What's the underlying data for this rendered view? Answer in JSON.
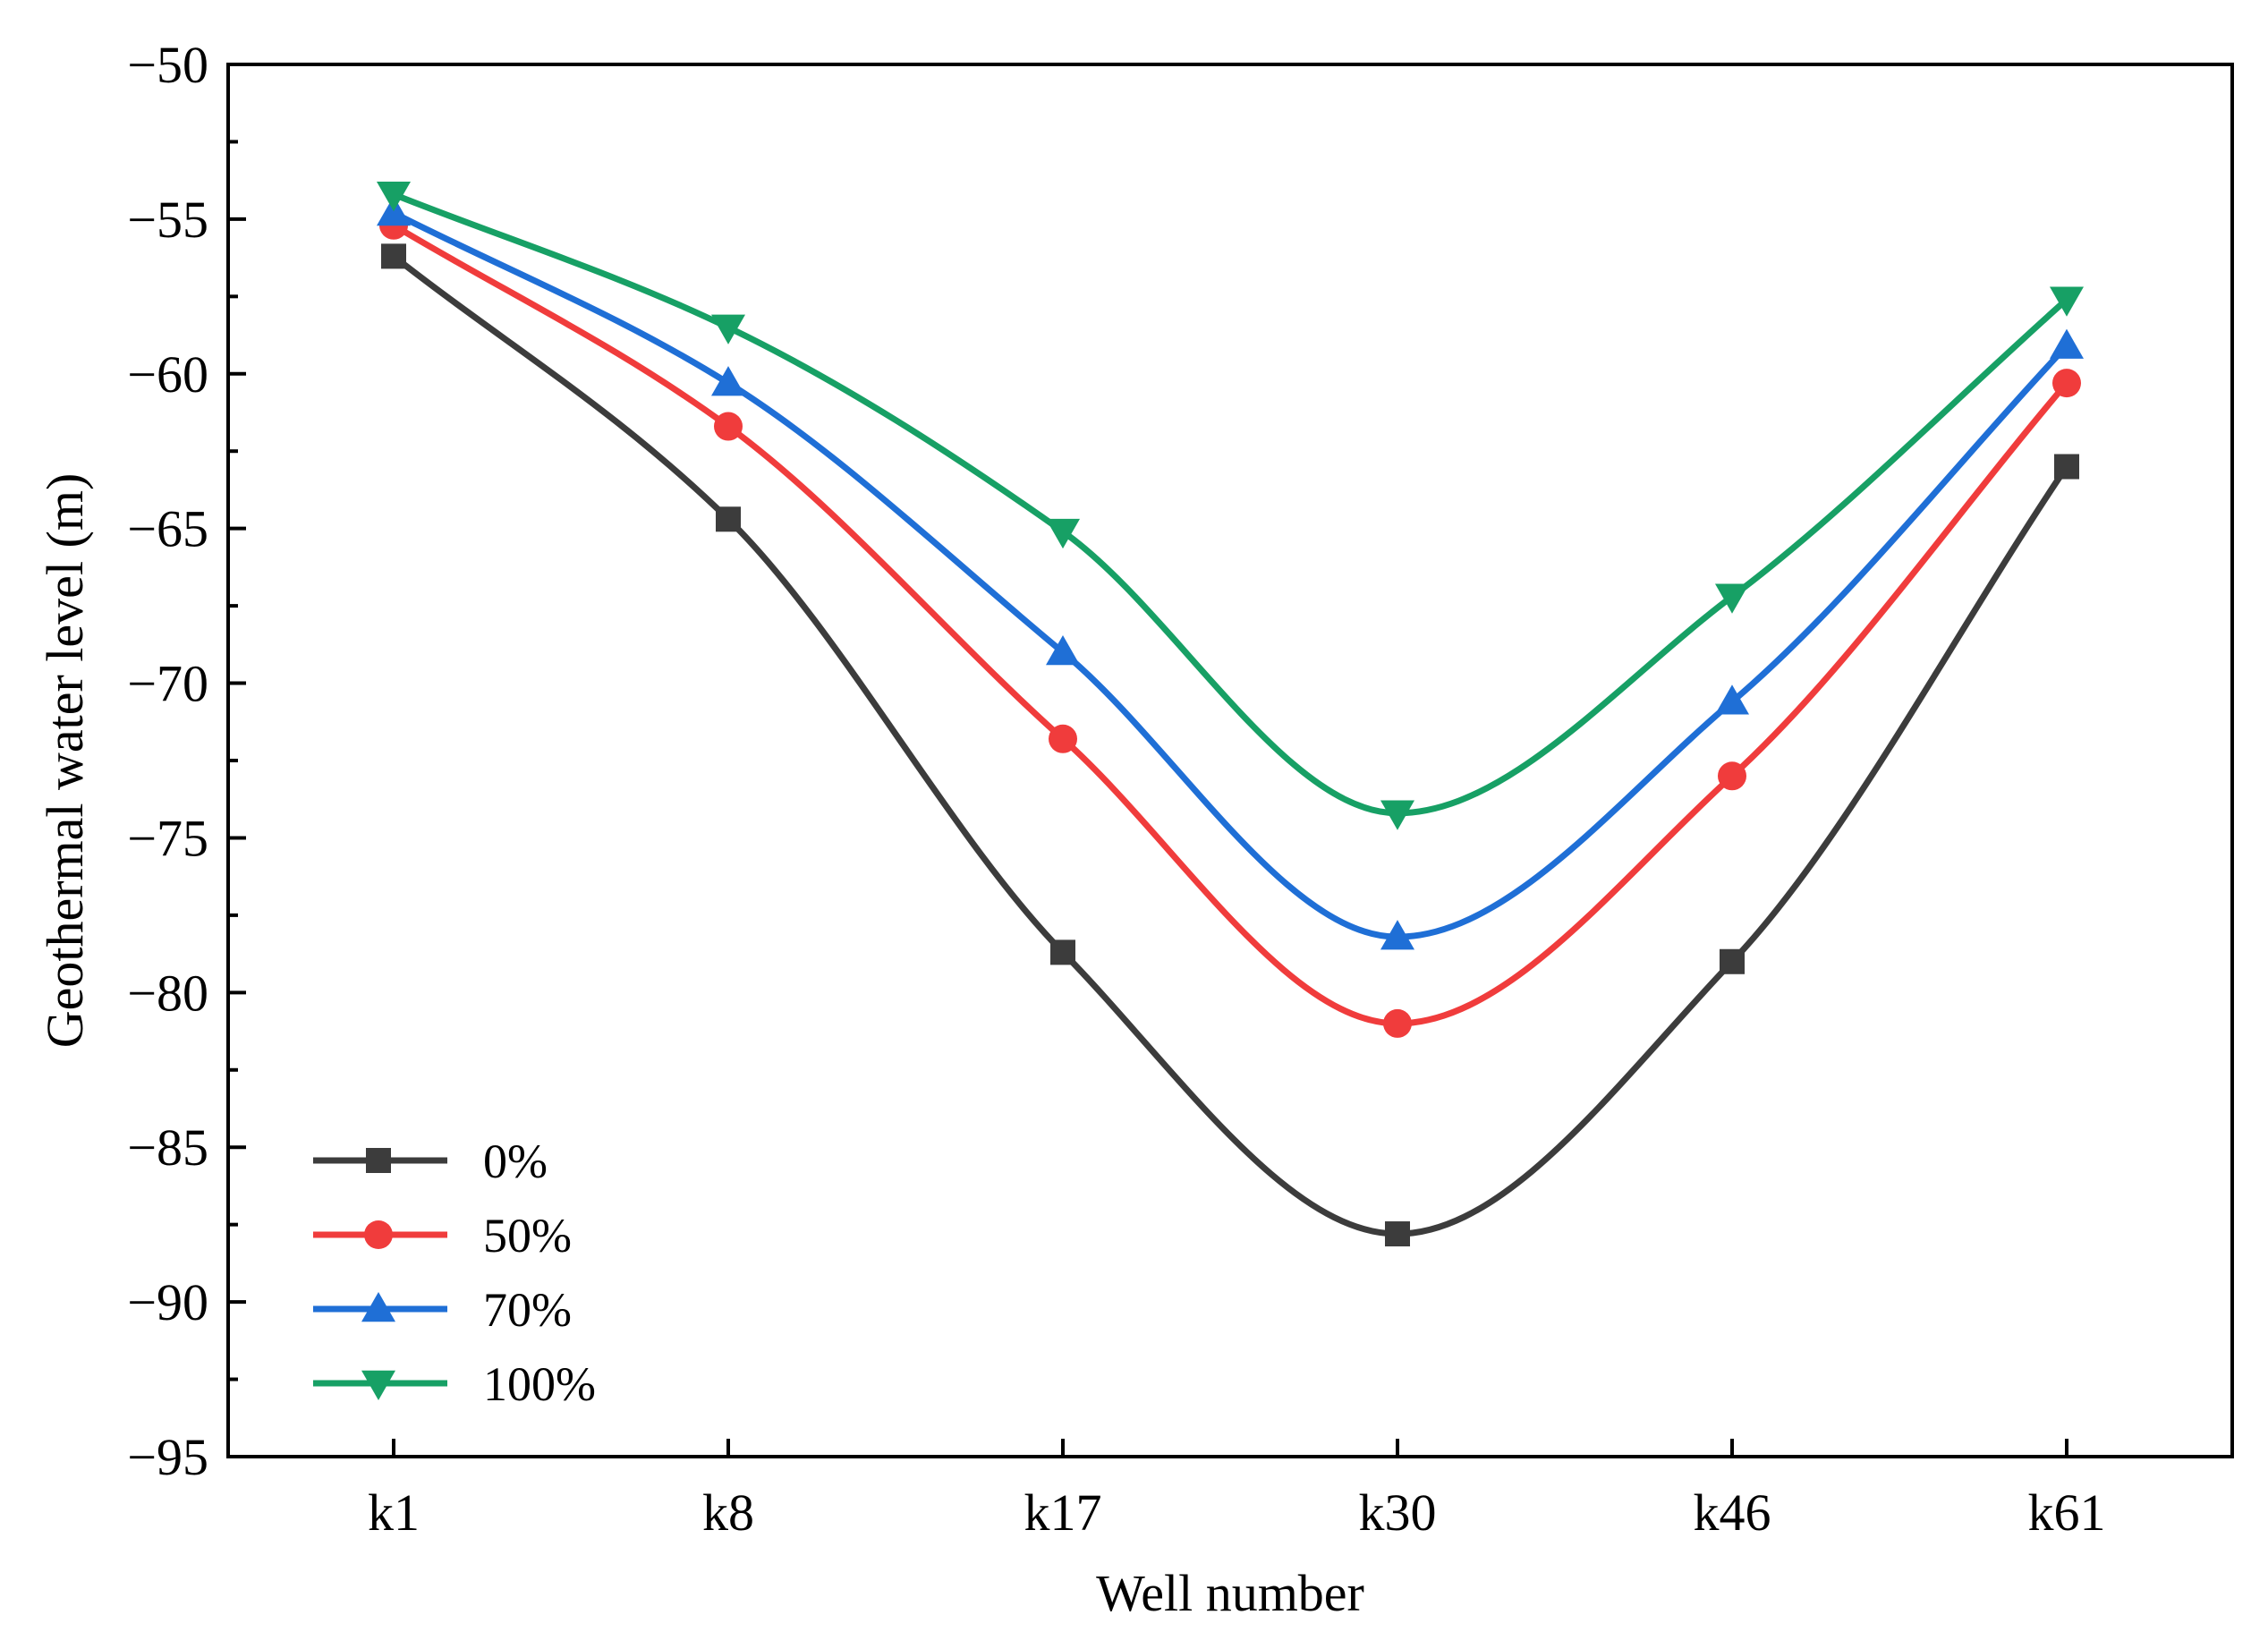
{
  "chart_data": {
    "type": "line",
    "title": "",
    "xlabel": "Well number",
    "ylabel": "Geothermal water level (m)",
    "categories": [
      "k1",
      "k8",
      "k17",
      "k30",
      "k46",
      "k61"
    ],
    "ylim": [
      -95,
      -50
    ],
    "yticks": [
      "−50",
      "−55",
      "−60",
      "−65",
      "−70",
      "−75",
      "−80",
      "−85",
      "−90",
      "−95"
    ],
    "ytick_values": [
      -50,
      -55,
      -60,
      -65,
      -70,
      -75,
      -80,
      -85,
      -90,
      -95
    ],
    "grid": false,
    "legend_position": "bottom-left",
    "smooth": true,
    "series": [
      {
        "name": "0%",
        "color": "#3c3c3c",
        "marker": "square",
        "values": [
          -56.2,
          -64.7,
          -78.7,
          -87.8,
          -79.0,
          -63.0
        ]
      },
      {
        "name": "50%",
        "color": "#f03c3c",
        "marker": "circle",
        "values": [
          -55.2,
          -61.7,
          -71.8,
          -81.0,
          -73.0,
          -60.3
        ]
      },
      {
        "name": "70%",
        "color": "#1f6fd6",
        "marker": "triangle-up",
        "values": [
          -54.8,
          -60.3,
          -69.0,
          -78.2,
          -70.6,
          -59.1
        ]
      },
      {
        "name": "100%",
        "color": "#17a065",
        "marker": "triangle-down",
        "values": [
          -54.2,
          -58.5,
          -65.1,
          -74.2,
          -67.2,
          -57.6
        ]
      }
    ]
  }
}
